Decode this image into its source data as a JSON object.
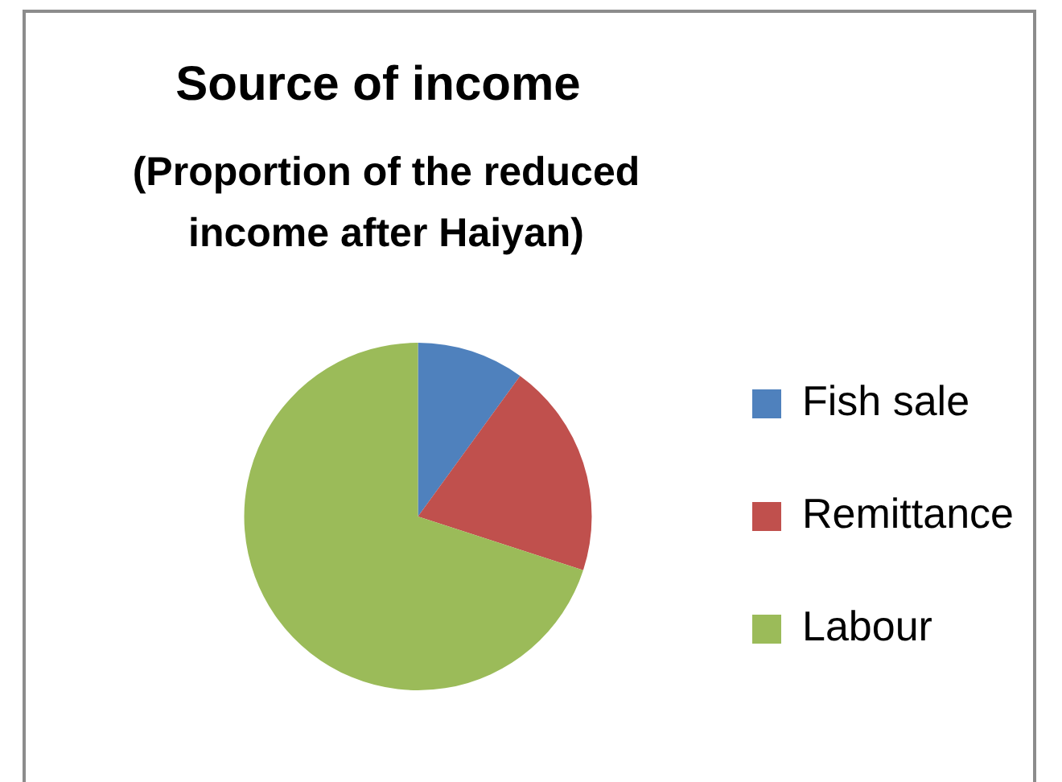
{
  "chart_data": {
    "type": "pie",
    "title": "Source of income",
    "subtitle": "(Proportion of the reduced income after Haiyan)",
    "categories": [
      "Fish sale",
      "Remittance",
      "Labour"
    ],
    "values": [
      10,
      20,
      70
    ],
    "colors": [
      "#4f81bd",
      "#c0504d",
      "#9bbb59"
    ],
    "legend": "right"
  }
}
